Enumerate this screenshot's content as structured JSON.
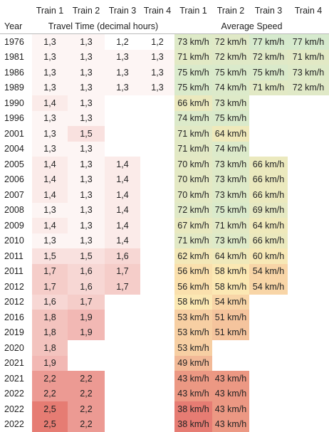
{
  "table": {
    "header": [
      "Train 1",
      "Train 2",
      "Train 3",
      "Train 4",
      "Train 1",
      "Train 2",
      "Train 3",
      "Train 4"
    ],
    "year_label": "Year",
    "group_time": "Travel Time (decimal hours)",
    "group_speed": "Average Speed",
    "rows": [
      [
        "1976",
        "1,3",
        "1,3",
        "1,2",
        "1,2",
        "73 km/h",
        "72 km/h",
        "77 km/h",
        "77 km/h"
      ],
      [
        "1981",
        "1,3",
        "1,3",
        "1,3",
        "1,3",
        "71 km/h",
        "72 km/h",
        "72 km/h",
        "71 km/h"
      ],
      [
        "1986",
        "1,3",
        "1,3",
        "1,3",
        "1,3",
        "75 km/h",
        "75 km/h",
        "75 km/h",
        "73 km/h"
      ],
      [
        "1989",
        "1,3",
        "1,3",
        "1,3",
        "1,3",
        "75 km/h",
        "74 km/h",
        "71 km/h",
        "72 km/h"
      ],
      [
        "1990",
        "1,4",
        "1,3",
        null,
        null,
        "66 km/h",
        "73 km/h",
        null,
        null
      ],
      [
        "1996",
        "1,3",
        "1,3",
        null,
        null,
        "74 km/h",
        "75 km/h",
        null,
        null
      ],
      [
        "2001",
        "1,3",
        "1,5",
        null,
        null,
        "71 km/h",
        "64 km/h",
        null,
        null
      ],
      [
        "2004",
        "1,3",
        "1,3",
        null,
        null,
        "71 km/h",
        "74 km/h",
        null,
        null
      ],
      [
        "2005",
        "1,4",
        "1,3",
        "1,4",
        null,
        "70 km/h",
        "73 km/h",
        "66 km/h",
        null
      ],
      [
        "2006",
        "1,4",
        "1,3",
        "1,4",
        null,
        "70 km/h",
        "73 km/h",
        "66 km/h",
        null
      ],
      [
        "2007",
        "1,4",
        "1,3",
        "1,4",
        null,
        "70 km/h",
        "73 km/h",
        "66 km/h",
        null
      ],
      [
        "2008",
        "1,3",
        "1,3",
        "1,4",
        null,
        "72 km/h",
        "75 km/h",
        "69 km/h",
        null
      ],
      [
        "2009",
        "1,4",
        "1,3",
        "1,4",
        null,
        "67 km/h",
        "71 km/h",
        "64 km/h",
        null
      ],
      [
        "2010",
        "1,3",
        "1,3",
        "1,4",
        null,
        "71 km/h",
        "73 km/h",
        "66 km/h",
        null
      ],
      [
        "2011",
        "1,5",
        "1,5",
        "1,6",
        null,
        "62 km/h",
        "64 km/h",
        "60 km/h",
        null
      ],
      [
        "2011",
        "1,7",
        "1,6",
        "1,7",
        null,
        "56 km/h",
        "58 km/h",
        "54 km/h",
        null
      ],
      [
        "2012",
        "1,7",
        "1,6",
        "1,7",
        null,
        "56 km/h",
        "58 km/h",
        "54 km/h",
        null
      ],
      [
        "2012",
        "1,6",
        "1,7",
        null,
        null,
        "58 km/h",
        "54 km/h",
        null,
        null
      ],
      [
        "2016",
        "1,8",
        "1,9",
        null,
        null,
        "53 km/h",
        "51 km/h",
        null,
        null
      ],
      [
        "2019",
        "1,8",
        "1,9",
        null,
        null,
        "53 km/h",
        "51 km/h",
        null,
        null
      ],
      [
        "2020",
        "1,8",
        null,
        null,
        null,
        "53 km/h",
        null,
        null,
        null
      ],
      [
        "2021",
        "1,9",
        null,
        null,
        null,
        "49 km/h",
        null,
        null,
        null
      ],
      [
        "2021",
        "2,2",
        "2,2",
        null,
        null,
        "43 km/h",
        "43 km/h",
        null,
        null
      ],
      [
        "2022",
        "2,2",
        "2,2",
        null,
        null,
        "43 km/h",
        "43 km/h",
        null,
        null
      ],
      [
        "2022",
        "2,5",
        "2,2",
        null,
        null,
        "38 km/h",
        "43 km/h",
        null,
        null
      ],
      [
        "2022",
        "2,5",
        "2,2",
        null,
        null,
        "38 km/h",
        "43 km/h",
        null,
        null
      ]
    ]
  }
}
